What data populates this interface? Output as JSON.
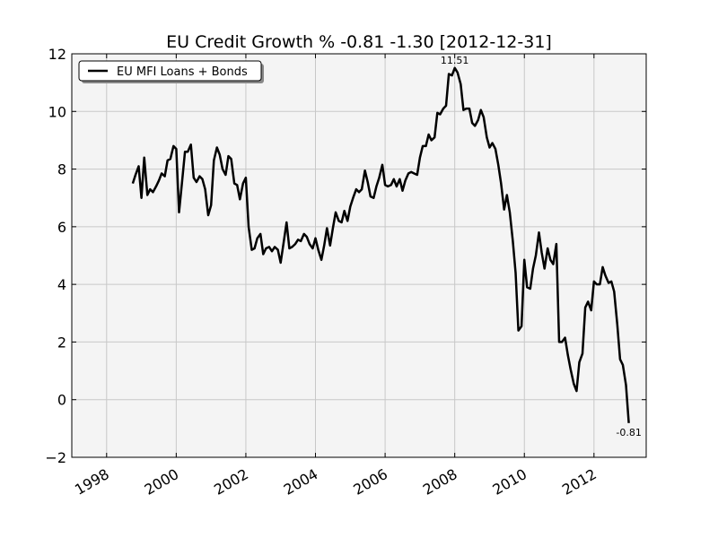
{
  "chart_data": {
    "type": "line",
    "title": "EU Credit Growth % -0.81 -1.30 [2012-12-31]",
    "xlabel": "",
    "ylabel": "",
    "xlim": [
      1997,
      2013.5
    ],
    "ylim": [
      -2,
      12
    ],
    "x_ticks": [
      1998,
      2000,
      2002,
      2004,
      2006,
      2008,
      2010,
      2012
    ],
    "y_ticks": [
      -2,
      0,
      2,
      4,
      6,
      8,
      10,
      12
    ],
    "grid": true,
    "legend_position": "top-left",
    "series": [
      {
        "name": "EU MFI Loans + Bonds",
        "color": "#000000",
        "points": [
          [
            1998.75,
            7.5
          ],
          [
            1998.83,
            7.8
          ],
          [
            1998.92,
            8.1
          ],
          [
            1999.0,
            7.0
          ],
          [
            1999.08,
            8.4
          ],
          [
            1999.17,
            7.1
          ],
          [
            1999.25,
            7.3
          ],
          [
            1999.33,
            7.2
          ],
          [
            1999.42,
            7.4
          ],
          [
            1999.5,
            7.6
          ],
          [
            1999.58,
            7.85
          ],
          [
            1999.67,
            7.75
          ],
          [
            1999.75,
            8.3
          ],
          [
            1999.83,
            8.35
          ],
          [
            1999.92,
            8.8
          ],
          [
            2000.0,
            8.7
          ],
          [
            2000.08,
            6.5
          ],
          [
            2000.17,
            7.6
          ],
          [
            2000.25,
            8.6
          ],
          [
            2000.33,
            8.6
          ],
          [
            2000.42,
            8.85
          ],
          [
            2000.5,
            7.7
          ],
          [
            2000.58,
            7.55
          ],
          [
            2000.67,
            7.75
          ],
          [
            2000.75,
            7.65
          ],
          [
            2000.83,
            7.3
          ],
          [
            2000.92,
            6.4
          ],
          [
            2001.0,
            6.75
          ],
          [
            2001.08,
            8.3
          ],
          [
            2001.17,
            8.75
          ],
          [
            2001.25,
            8.5
          ],
          [
            2001.33,
            8.0
          ],
          [
            2001.42,
            7.8
          ],
          [
            2001.5,
            8.45
          ],
          [
            2001.58,
            8.35
          ],
          [
            2001.67,
            7.5
          ],
          [
            2001.75,
            7.45
          ],
          [
            2001.83,
            6.95
          ],
          [
            2001.92,
            7.5
          ],
          [
            2002.0,
            7.7
          ],
          [
            2002.08,
            6.0
          ],
          [
            2002.17,
            5.2
          ],
          [
            2002.25,
            5.25
          ],
          [
            2002.33,
            5.6
          ],
          [
            2002.42,
            5.75
          ],
          [
            2002.5,
            5.05
          ],
          [
            2002.58,
            5.25
          ],
          [
            2002.67,
            5.3
          ],
          [
            2002.75,
            5.15
          ],
          [
            2002.83,
            5.3
          ],
          [
            2002.92,
            5.2
          ],
          [
            2003.0,
            4.75
          ],
          [
            2003.08,
            5.4
          ],
          [
            2003.17,
            6.15
          ],
          [
            2003.25,
            5.25
          ],
          [
            2003.33,
            5.3
          ],
          [
            2003.42,
            5.4
          ],
          [
            2003.5,
            5.55
          ],
          [
            2003.58,
            5.5
          ],
          [
            2003.67,
            5.75
          ],
          [
            2003.75,
            5.65
          ],
          [
            2003.83,
            5.4
          ],
          [
            2003.92,
            5.25
          ],
          [
            2004.0,
            5.6
          ],
          [
            2004.08,
            5.2
          ],
          [
            2004.17,
            4.85
          ],
          [
            2004.25,
            5.35
          ],
          [
            2004.33,
            5.95
          ],
          [
            2004.42,
            5.35
          ],
          [
            2004.5,
            5.95
          ],
          [
            2004.58,
            6.5
          ],
          [
            2004.67,
            6.2
          ],
          [
            2004.75,
            6.15
          ],
          [
            2004.83,
            6.55
          ],
          [
            2004.92,
            6.2
          ],
          [
            2005.0,
            6.7
          ],
          [
            2005.08,
            7.0
          ],
          [
            2005.17,
            7.3
          ],
          [
            2005.25,
            7.2
          ],
          [
            2005.33,
            7.3
          ],
          [
            2005.42,
            7.95
          ],
          [
            2005.5,
            7.55
          ],
          [
            2005.58,
            7.05
          ],
          [
            2005.67,
            7.0
          ],
          [
            2005.75,
            7.4
          ],
          [
            2005.83,
            7.7
          ],
          [
            2005.92,
            8.15
          ],
          [
            2006.0,
            7.45
          ],
          [
            2006.08,
            7.4
          ],
          [
            2006.17,
            7.45
          ],
          [
            2006.25,
            7.65
          ],
          [
            2006.33,
            7.4
          ],
          [
            2006.42,
            7.65
          ],
          [
            2006.5,
            7.25
          ],
          [
            2006.58,
            7.6
          ],
          [
            2006.67,
            7.85
          ],
          [
            2006.75,
            7.9
          ],
          [
            2006.83,
            7.85
          ],
          [
            2006.92,
            7.8
          ],
          [
            2007.0,
            8.4
          ],
          [
            2007.08,
            8.8
          ],
          [
            2007.17,
            8.8
          ],
          [
            2007.25,
            9.2
          ],
          [
            2007.33,
            9.0
          ],
          [
            2007.42,
            9.1
          ],
          [
            2007.5,
            9.95
          ],
          [
            2007.58,
            9.9
          ],
          [
            2007.67,
            10.1
          ],
          [
            2007.75,
            10.2
          ],
          [
            2007.83,
            11.3
          ],
          [
            2007.92,
            11.25
          ],
          [
            2008.0,
            11.51
          ],
          [
            2008.08,
            11.35
          ],
          [
            2008.17,
            10.95
          ],
          [
            2008.25,
            10.05
          ],
          [
            2008.33,
            10.1
          ],
          [
            2008.42,
            10.1
          ],
          [
            2008.5,
            9.6
          ],
          [
            2008.58,
            9.5
          ],
          [
            2008.67,
            9.7
          ],
          [
            2008.75,
            10.05
          ],
          [
            2008.83,
            9.8
          ],
          [
            2008.92,
            9.1
          ],
          [
            2009.0,
            8.75
          ],
          [
            2009.08,
            8.9
          ],
          [
            2009.17,
            8.7
          ],
          [
            2009.25,
            8.15
          ],
          [
            2009.33,
            7.5
          ],
          [
            2009.42,
            6.6
          ],
          [
            2009.5,
            7.1
          ],
          [
            2009.58,
            6.5
          ],
          [
            2009.67,
            5.5
          ],
          [
            2009.75,
            4.4
          ],
          [
            2009.83,
            2.4
          ],
          [
            2009.92,
            2.55
          ],
          [
            2010.0,
            4.85
          ],
          [
            2010.08,
            3.9
          ],
          [
            2010.17,
            3.85
          ],
          [
            2010.25,
            4.55
          ],
          [
            2010.33,
            5.0
          ],
          [
            2010.42,
            5.8
          ],
          [
            2010.5,
            5.1
          ],
          [
            2010.58,
            4.55
          ],
          [
            2010.67,
            5.25
          ],
          [
            2010.75,
            4.85
          ],
          [
            2010.83,
            4.7
          ],
          [
            2010.92,
            5.4
          ],
          [
            2011.0,
            2.0
          ],
          [
            2011.08,
            2.0
          ],
          [
            2011.17,
            2.15
          ],
          [
            2011.25,
            1.55
          ],
          [
            2011.33,
            1.05
          ],
          [
            2011.42,
            0.55
          ],
          [
            2011.5,
            0.3
          ],
          [
            2011.58,
            1.3
          ],
          [
            2011.67,
            1.6
          ],
          [
            2011.75,
            3.2
          ],
          [
            2011.83,
            3.4
          ],
          [
            2011.92,
            3.1
          ],
          [
            2012.0,
            4.1
          ],
          [
            2012.08,
            4.0
          ],
          [
            2012.17,
            4.0
          ],
          [
            2012.25,
            4.6
          ],
          [
            2012.33,
            4.3
          ],
          [
            2012.42,
            4.05
          ],
          [
            2012.5,
            4.1
          ],
          [
            2012.58,
            3.75
          ],
          [
            2012.67,
            2.6
          ],
          [
            2012.75,
            1.4
          ],
          [
            2012.83,
            1.2
          ],
          [
            2012.92,
            0.5
          ],
          [
            2013.0,
            -0.81
          ]
        ]
      }
    ],
    "annotations": [
      {
        "label": "11.51",
        "x": 2008.0,
        "y": 11.51
      },
      {
        "label": "-0.81",
        "x": 2013.0,
        "y": -0.81
      }
    ]
  }
}
